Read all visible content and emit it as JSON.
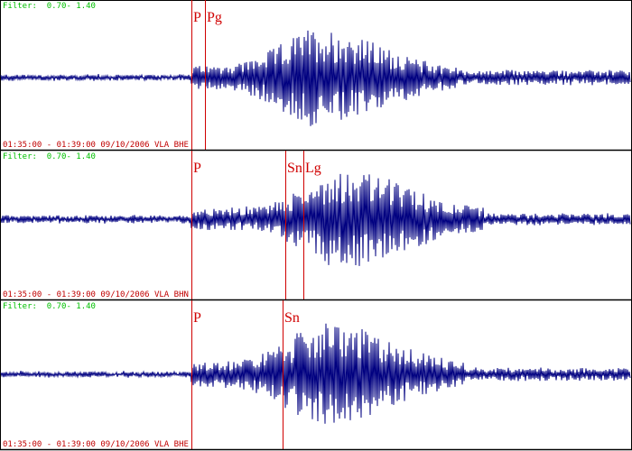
{
  "panels": [
    {
      "filter": "Filter:  0.70- 1.40",
      "time_label": "01:35:00 - 01:39:00 09/10/2006 VLA BHE",
      "phases": [
        "P",
        "Pg"
      ]
    },
    {
      "filter": "Filter:  0.70- 1.40",
      "time_label": "01:35:00 - 01:39:00 09/10/2006 VLA BHN",
      "phases": [
        "P",
        "Sn",
        "Lg"
      ]
    },
    {
      "filter": "Filter:  0.70- 1.40",
      "time_label": "01:35:00 - 01:39:00 09/10/2006 VLA BHE",
      "phases": [
        "P",
        "Sn"
      ]
    }
  ]
}
